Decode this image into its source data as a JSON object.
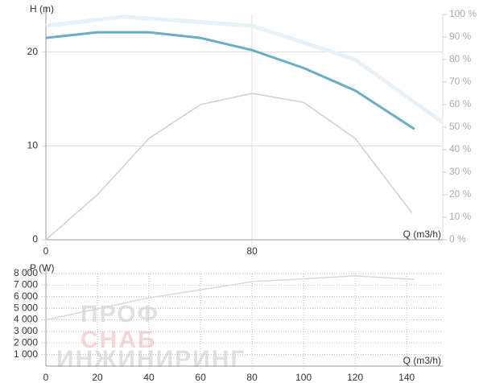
{
  "chart_data": [
    {
      "type": "line",
      "y_label": "H (m)",
      "x_label": "Q (m3/h)",
      "xlim": [
        0,
        154
      ],
      "xticks": [
        0,
        80
      ],
      "ylim": [
        0,
        24
      ],
      "yticks": [
        0,
        10,
        20
      ],
      "y2lim": [
        0,
        100
      ],
      "y2ticks": [
        {
          "value": 0,
          "label": "0 %"
        },
        {
          "value": 10,
          "label": "10 %"
        },
        {
          "value": 20,
          "label": "20 %"
        },
        {
          "value": 30,
          "label": "30 %"
        },
        {
          "value": 40,
          "label": "40 %"
        },
        {
          "value": 50,
          "label": "50 %"
        },
        {
          "value": 60,
          "label": "60 %"
        },
        {
          "value": 70,
          "label": "70 %"
        },
        {
          "value": 80,
          "label": "80 %"
        },
        {
          "value": 90,
          "label": "90 %"
        },
        {
          "value": 100,
          "label": "100 %"
        }
      ],
      "series": [
        {
          "color": "#e6f1f8",
          "axis": "y2",
          "width": 5,
          "x": [
            0,
            30,
            80,
            120,
            154
          ],
          "values": [
            95,
            99,
            95,
            80,
            52
          ]
        },
        {
          "color": "#d0d0d0",
          "axis": "y2",
          "width": 1.5,
          "x": [
            0,
            20,
            40,
            60,
            80,
            100,
            120,
            140,
            142
          ],
          "values": [
            0,
            20,
            45,
            60,
            65,
            61,
            45,
            15,
            12
          ]
        },
        {
          "color": "#6aaec6",
          "width": 3,
          "x": [
            0,
            20,
            40,
            60,
            80,
            100,
            120,
            143
          ],
          "values": [
            21.5,
            22.1,
            22.1,
            21.5,
            20.2,
            18.3,
            15.9,
            11.8
          ]
        }
      ]
    },
    {
      "type": "line",
      "y_label": "P (W)",
      "x_label": "Q (m3/h)",
      "xlim": [
        0,
        154
      ],
      "xticks": [
        0,
        20,
        40,
        60,
        80,
        100,
        120,
        140
      ],
      "ylim": [
        0,
        8000
      ],
      "yticks": [
        {
          "value": 1000,
          "label": "1 000"
        },
        {
          "value": 2000,
          "label": "2 000"
        },
        {
          "value": 3000,
          "label": "3 000"
        },
        {
          "value": 4000,
          "label": "4 000"
        },
        {
          "value": 5000,
          "label": "5 000"
        },
        {
          "value": 6000,
          "label": "6 000"
        },
        {
          "value": 7000,
          "label": "7 000"
        },
        {
          "value": 8000,
          "label": "8 000"
        }
      ],
      "series": [
        {
          "color": "#d8d8d8",
          "width": 1.5,
          "x": [
            0,
            40,
            80,
            120,
            143
          ],
          "values": [
            4000,
            5900,
            7300,
            7800,
            7500
          ]
        }
      ]
    }
  ],
  "watermark": [
    "ПРОФ",
    "СНАБ",
    "ИНЖИНИРИНГ"
  ]
}
